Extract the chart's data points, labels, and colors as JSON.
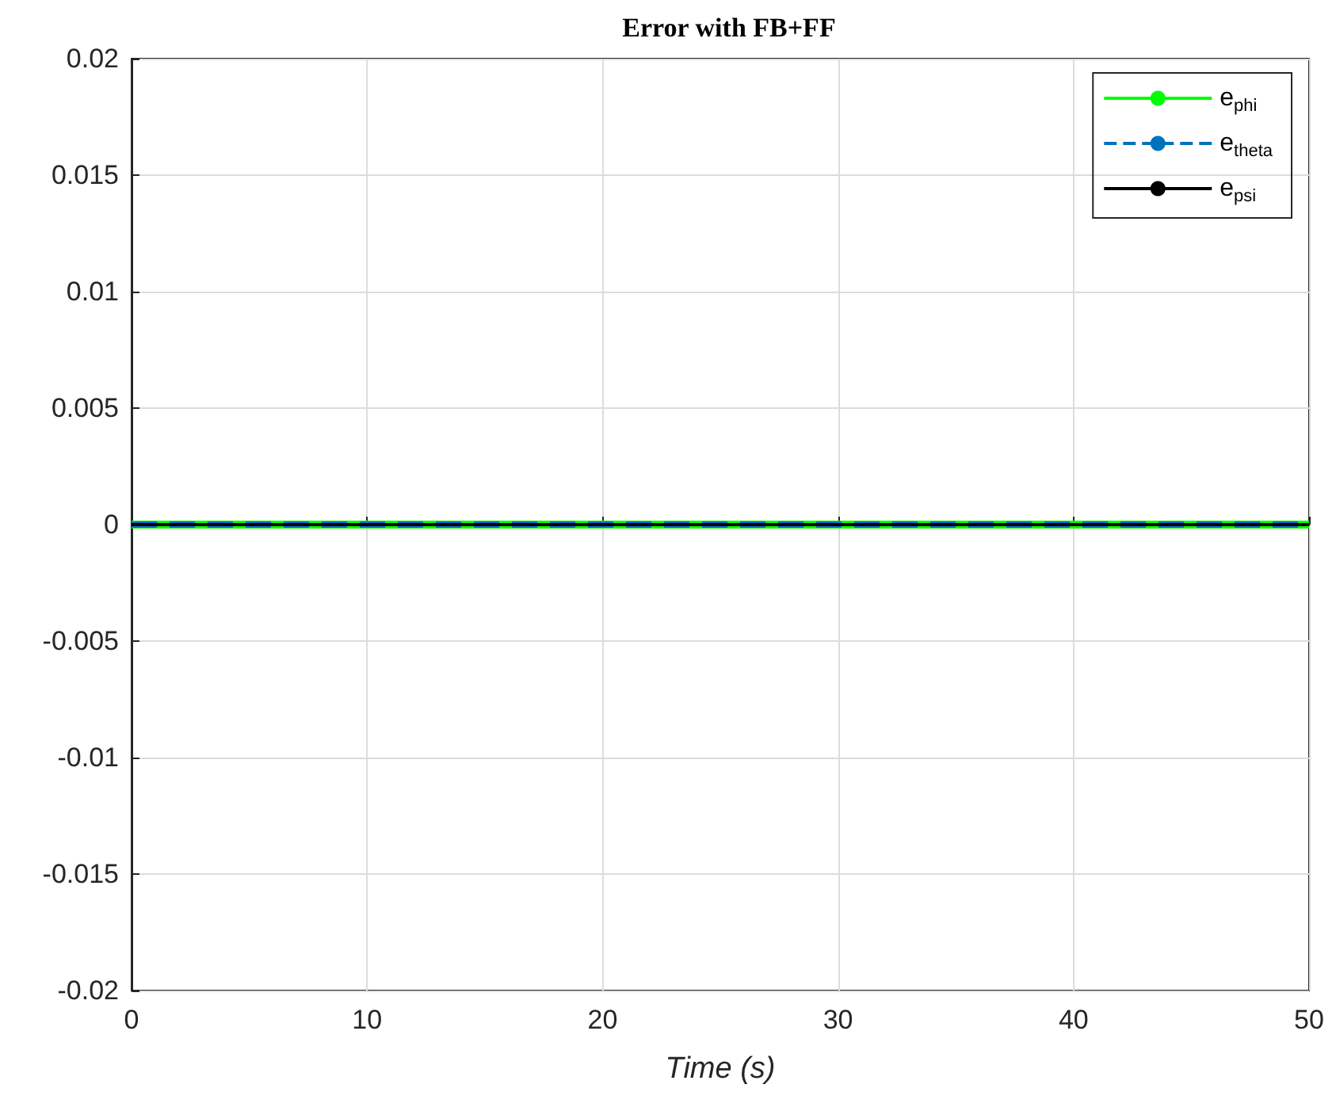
{
  "chart_data": {
    "type": "line",
    "title": "Error with FB+FF",
    "xlabel": "Time (s)",
    "x": [
      0,
      50
    ],
    "series": [
      {
        "name": "e$_{phi}$",
        "color": "#00ff00",
        "values": [
          0,
          0
        ],
        "line_style": "solid"
      },
      {
        "name": "e$_{theta}$",
        "color": "#0072bd",
        "values": [
          0,
          0
        ],
        "line_style": "dashed"
      },
      {
        "name": "e$_{psi}$",
        "color": "#000000",
        "values": [
          0,
          0
        ],
        "line_style": "solid"
      }
    ],
    "xlim": [
      0,
      50
    ],
    "xticks": [
      0,
      10,
      20,
      30,
      40,
      50
    ],
    "ylim": [
      -0.02,
      0.02
    ],
    "yticks": [
      -0.02,
      -0.015,
      -0.01,
      -0.005,
      0,
      0.005,
      0.01,
      0.015,
      0.02
    ],
    "grid": true,
    "legend": "top right",
    "marker": "none"
  }
}
